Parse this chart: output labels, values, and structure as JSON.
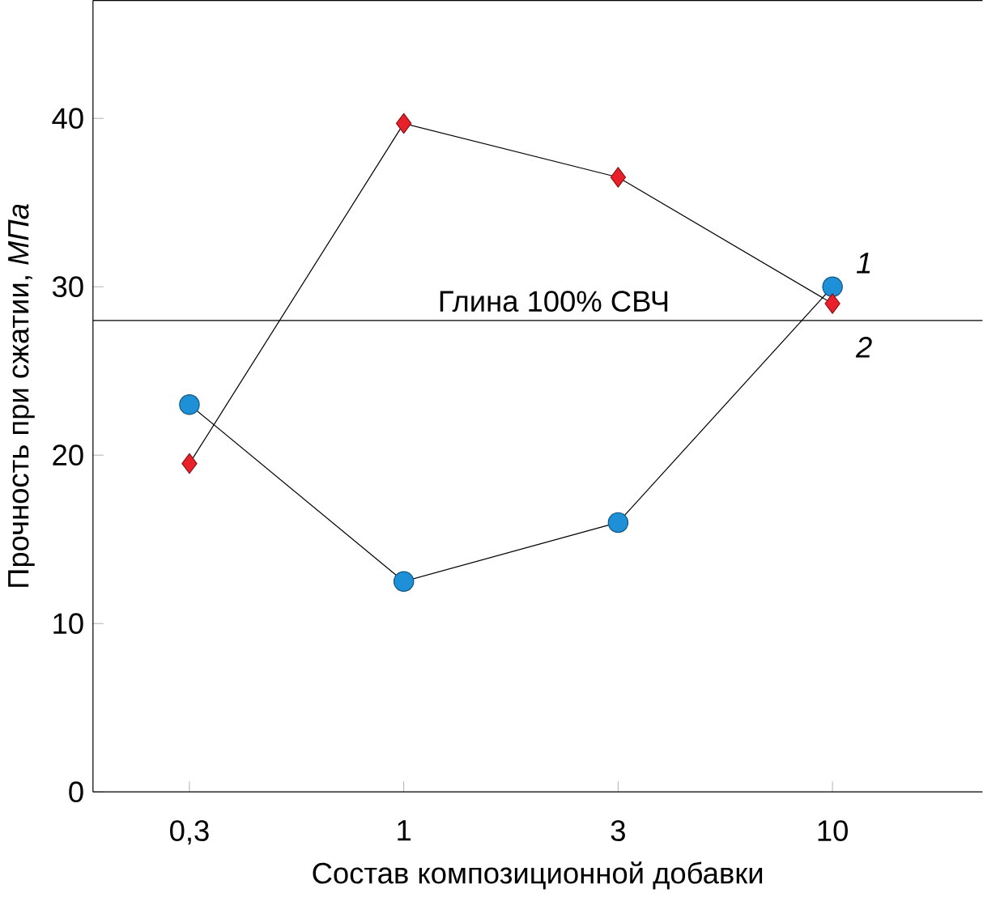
{
  "chart_data": {
    "type": "line",
    "xlabel": "Состав композиционной добавки",
    "ylabel": "Прочность при сжатии, *МПа*",
    "categories": [
      "0,3",
      "1",
      "3",
      "10"
    ],
    "ylim": [
      0,
      47
    ],
    "yticks": [
      0,
      10,
      20,
      30,
      40
    ],
    "series": [
      {
        "name": "1",
        "color": "#1e90d8",
        "marker": "circle",
        "values": [
          23,
          12.5,
          16,
          30
        ]
      },
      {
        "name": "2",
        "color": "#e8202a",
        "marker": "diamond",
        "values": [
          19.5,
          39.7,
          36.5,
          29
        ]
      }
    ],
    "ref_lines": [
      {
        "axis": "y",
        "value": 28,
        "label": "Глина 100% СВЧ",
        "color": "#000000"
      }
    ],
    "line_style": "solid"
  }
}
